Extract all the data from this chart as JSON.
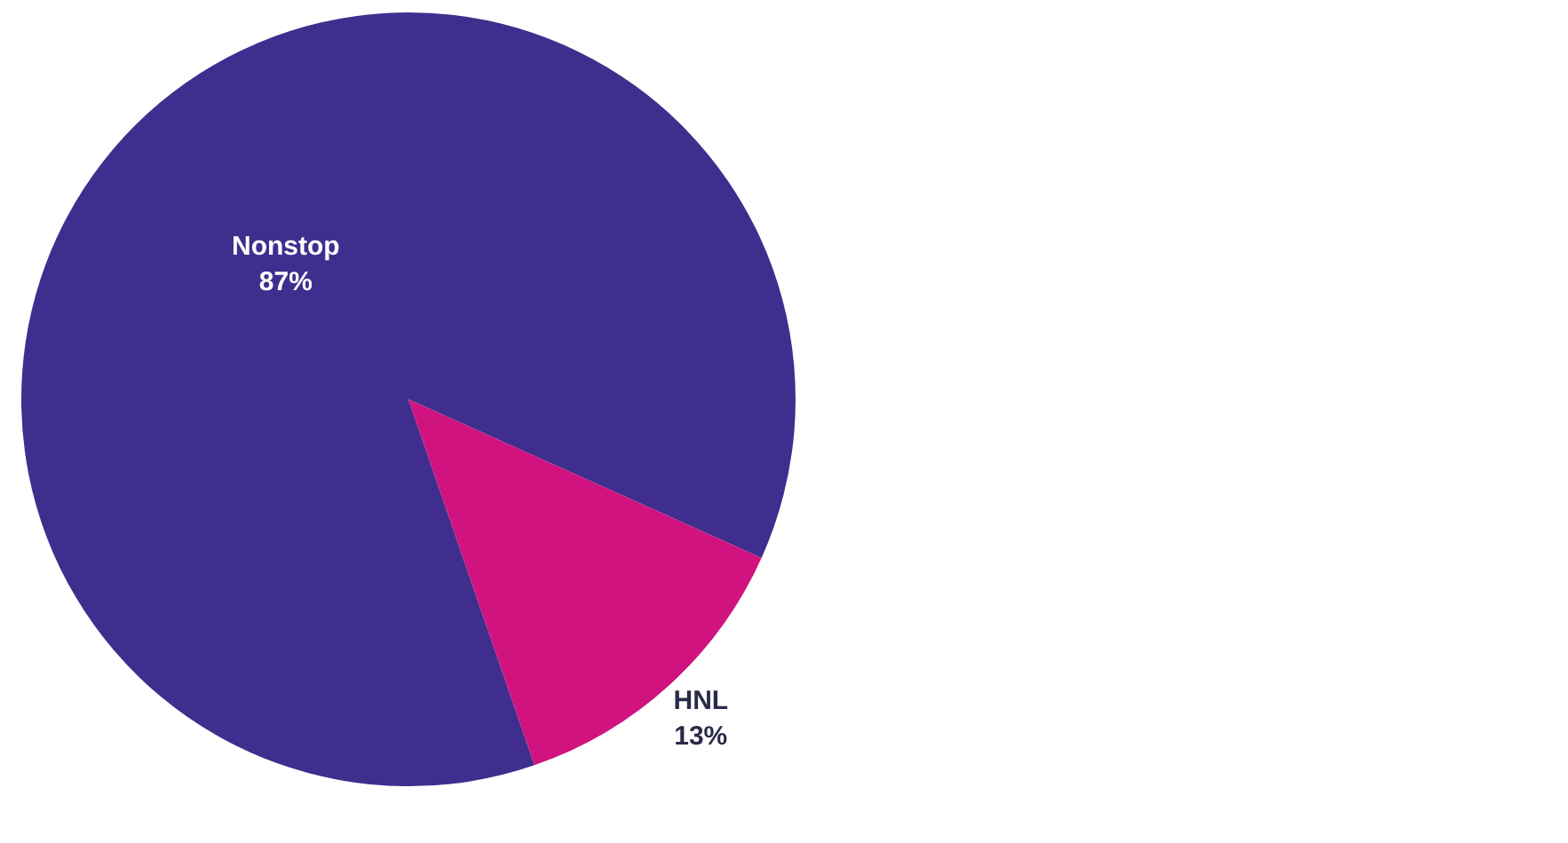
{
  "chart_data": {
    "type": "pie",
    "categories": [
      "Nonstop",
      "HNL"
    ],
    "values": [
      87,
      13
    ],
    "colors": [
      "#3f2e8e",
      "#d0137f"
    ],
    "value_labels": [
      "87%",
      "13%"
    ],
    "legend": false
  }
}
